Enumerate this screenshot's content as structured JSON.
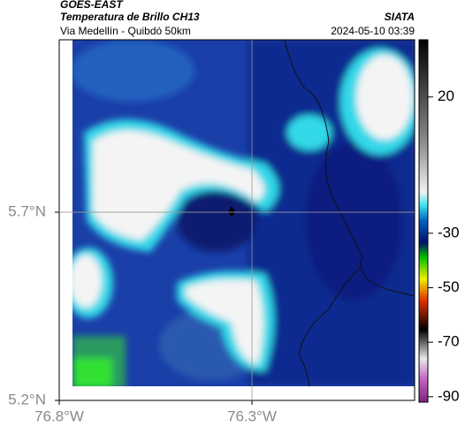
{
  "header": {
    "satellite": "GOES-EAST",
    "product": "Temperatura de Brillo CH13",
    "region": "Via Medellín - Quibdó 50km",
    "source": "SIATA",
    "timestamp": "2024-05-10 03:39"
  },
  "map": {
    "xlim": [
      -76.8,
      -75.878
    ],
    "ylim": [
      5.2,
      6.158
    ],
    "xticks": [
      {
        "value": -76.8,
        "label": "76.8°W"
      },
      {
        "value": -76.3,
        "label": "76.3°W"
      }
    ],
    "yticks": [
      {
        "value": 5.7,
        "label": "5.7°N"
      },
      {
        "value": 5.2,
        "label": "5.2°N"
      }
    ],
    "colorbar": {
      "clim": [
        -92,
        41
      ],
      "ticks": [
        20,
        -30,
        -50,
        -70,
        -90
      ]
    }
  }
}
